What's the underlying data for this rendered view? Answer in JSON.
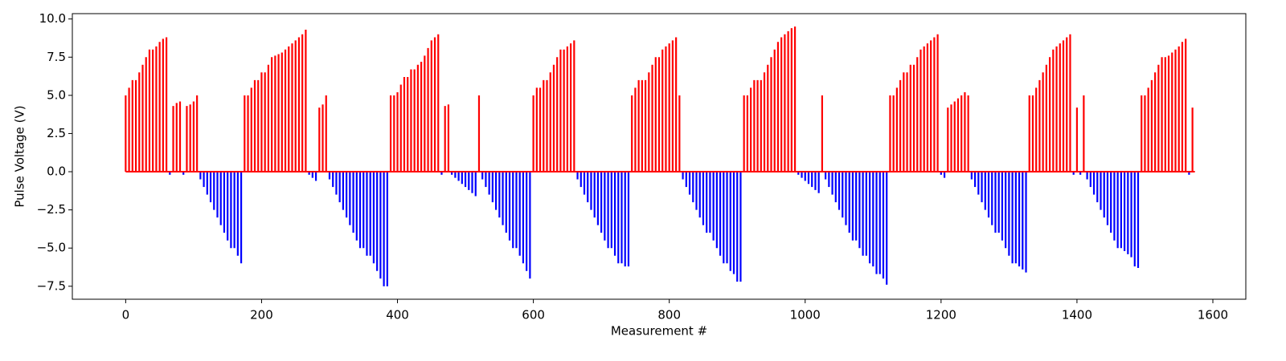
{
  "chart_data": {
    "type": "stem",
    "x_label": "Measurement #",
    "y_label": "Pulse Voltage (V)",
    "positive_color": "#ff0000",
    "negative_color": "#0000ff",
    "baseline_color": "#ff0000",
    "xlim": [
      -78.5,
      1648.5
    ],
    "xticks": [
      0,
      200,
      400,
      600,
      800,
      1000,
      1200,
      1400,
      1600
    ],
    "ylim": [
      -8.35,
      10.35
    ],
    "yticks": [
      {
        "value": -7.5,
        "label": "−7.5"
      },
      {
        "value": -5,
        "label": "−5.0"
      },
      {
        "value": -2.5,
        "label": "−2.5"
      },
      {
        "value": 0,
        "label": "0.0"
      },
      {
        "value": 2.5,
        "label": "2.5"
      },
      {
        "value": 5,
        "label": "5.0"
      },
      {
        "value": 7.5,
        "label": "7.5"
      },
      {
        "value": 10,
        "label": "10.0"
      }
    ],
    "x": [
      0,
      5,
      10,
      15,
      20,
      25,
      30,
      35,
      40,
      45,
      50,
      55,
      60,
      65,
      70,
      75,
      80,
      85,
      90,
      95,
      100,
      105,
      110,
      115,
      120,
      125,
      130,
      135,
      140,
      145,
      150,
      155,
      160,
      165,
      170,
      175,
      180,
      185,
      190,
      195,
      200,
      205,
      210,
      215,
      220,
      225,
      230,
      235,
      240,
      245,
      250,
      255,
      260,
      265,
      270,
      275,
      280,
      285,
      290,
      295,
      300,
      305,
      310,
      315,
      320,
      325,
      330,
      335,
      340,
      345,
      350,
      355,
      360,
      365,
      370,
      375,
      380,
      385,
      390,
      395,
      400,
      405,
      410,
      415,
      420,
      425,
      430,
      435,
      440,
      445,
      450,
      455,
      460,
      465,
      470,
      475,
      480,
      485,
      490,
      495,
      500,
      505,
      510,
      515,
      520,
      525,
      530,
      535,
      540,
      545,
      550,
      555,
      560,
      565,
      570,
      575,
      580,
      585,
      590,
      595,
      600,
      605,
      610,
      615,
      620,
      625,
      630,
      635,
      640,
      645,
      650,
      655,
      660,
      665,
      670,
      675,
      680,
      685,
      690,
      695,
      700,
      705,
      710,
      715,
      720,
      725,
      730,
      735,
      740,
      745,
      750,
      755,
      760,
      765,
      770,
      775,
      780,
      785,
      790,
      795,
      800,
      805,
      810,
      815,
      820,
      825,
      830,
      835,
      840,
      845,
      850,
      855,
      860,
      865,
      870,
      875,
      880,
      885,
      890,
      895,
      900,
      905,
      910,
      915,
      920,
      925,
      930,
      935,
      940,
      945,
      950,
      955,
      960,
      965,
      970,
      975,
      980,
      985,
      990,
      995,
      1000,
      1005,
      1010,
      1015,
      1020,
      1025,
      1030,
      1035,
      1040,
      1045,
      1050,
      1055,
      1060,
      1065,
      1070,
      1075,
      1080,
      1085,
      1090,
      1095,
      1100,
      1105,
      1110,
      1115,
      1120,
      1125,
      1130,
      1135,
      1140,
      1145,
      1150,
      1155,
      1160,
      1165,
      1170,
      1175,
      1180,
      1185,
      1190,
      1195,
      1200,
      1205,
      1210,
      1215,
      1220,
      1225,
      1230,
      1235,
      1240,
      1245,
      1250,
      1255,
      1260,
      1265,
      1270,
      1275,
      1280,
      1285,
      1290,
      1295,
      1300,
      1305,
      1310,
      1315,
      1320,
      1325,
      1330,
      1335,
      1340,
      1345,
      1350,
      1355,
      1360,
      1365,
      1370,
      1375,
      1380,
      1385,
      1390,
      1395,
      1400,
      1405,
      1410,
      1415,
      1420,
      1425,
      1430,
      1435,
      1440,
      1445,
      1450,
      1455,
      1460,
      1465,
      1470,
      1475,
      1480,
      1485,
      1490,
      1495,
      1500,
      1505,
      1510,
      1515,
      1520,
      1525,
      1530,
      1535,
      1540,
      1545,
      1550,
      1555,
      1560,
      1565,
      1570
    ],
    "values": [
      5.0,
      5.5,
      6.0,
      6.0,
      6.5,
      7.0,
      7.5,
      8.0,
      8.0,
      8.2,
      8.5,
      8.7,
      8.8,
      -0.2,
      4.3,
      4.5,
      4.6,
      -0.2,
      4.3,
      4.4,
      4.6,
      5.0,
      -0.5,
      -1.0,
      -1.5,
      -2.0,
      -2.5,
      -3.0,
      -3.5,
      -4.0,
      -4.5,
      -5.0,
      -5.0,
      -5.5,
      -6.0,
      5.0,
      5.0,
      5.5,
      6.0,
      6.0,
      6.5,
      6.5,
      7.0,
      7.5,
      7.6,
      7.7,
      7.8,
      8.0,
      8.2,
      8.4,
      8.6,
      8.8,
      9.0,
      9.3,
      -0.2,
      -0.4,
      -0.6,
      4.2,
      4.4,
      5.0,
      -0.5,
      -1.0,
      -1.5,
      -2.0,
      -2.5,
      -3.0,
      -3.5,
      -4.0,
      -4.5,
      -5.0,
      -5.0,
      -5.5,
      -5.5,
      -6.0,
      -6.5,
      -7.0,
      -7.5,
      -7.5,
      5.0,
      5.0,
      5.2,
      5.7,
      6.2,
      6.2,
      6.7,
      6.7,
      7.0,
      7.2,
      7.6,
      8.1,
      8.6,
      8.8,
      9.0,
      -0.2,
      4.3,
      4.4,
      -0.2,
      -0.4,
      -0.6,
      -0.8,
      -1.0,
      -1.2,
      -1.4,
      -1.6,
      5.0,
      -0.5,
      -1.0,
      -1.5,
      -2.0,
      -2.5,
      -3.0,
      -3.5,
      -4.0,
      -4.5,
      -5.0,
      -5.0,
      -5.5,
      -6.0,
      -6.5,
      -7.0,
      5.0,
      5.5,
      5.5,
      6.0,
      6.0,
      6.5,
      7.0,
      7.5,
      8.0,
      8.0,
      8.2,
      8.4,
      8.6,
      -0.5,
      -1.0,
      -1.5,
      -2.0,
      -2.5,
      -3.0,
      -3.5,
      -4.0,
      -4.5,
      -5.0,
      -5.0,
      -5.5,
      -6.0,
      -6.0,
      -6.2,
      -6.2,
      5.0,
      5.5,
      6.0,
      6.0,
      6.0,
      6.5,
      7.0,
      7.5,
      7.5,
      8.0,
      8.2,
      8.4,
      8.6,
      8.8,
      5.0,
      -0.5,
      -1.0,
      -1.5,
      -2.0,
      -2.5,
      -3.0,
      -3.5,
      -4.0,
      -4.0,
      -4.5,
      -5.0,
      -5.5,
      -6.0,
      -6.0,
      -6.5,
      -6.7,
      -7.2,
      -7.2,
      5.0,
      5.0,
      5.5,
      6.0,
      6.0,
      6.0,
      6.5,
      7.0,
      7.5,
      8.0,
      8.5,
      8.8,
      9.0,
      9.2,
      9.4,
      9.5,
      -0.2,
      -0.4,
      -0.6,
      -0.8,
      -1.0,
      -1.2,
      -1.4,
      5.0,
      -0.5,
      -1.0,
      -1.5,
      -2.0,
      -2.5,
      -3.0,
      -3.5,
      -4.0,
      -4.5,
      -4.5,
      -5.0,
      -5.5,
      -5.5,
      -6.0,
      -6.2,
      -6.7,
      -6.7,
      -7.0,
      -7.4,
      5.0,
      5.0,
      5.5,
      6.0,
      6.5,
      6.5,
      7.0,
      7.0,
      7.5,
      8.0,
      8.2,
      8.4,
      8.6,
      8.8,
      9.0,
      -0.2,
      -0.4,
      4.2,
      4.4,
      4.6,
      4.8,
      5.0,
      5.2,
      5.0,
      -0.5,
      -1.0,
      -1.5,
      -2.0,
      -2.5,
      -3.0,
      -3.5,
      -4.0,
      -4.0,
      -4.5,
      -5.0,
      -5.5,
      -6.0,
      -6.0,
      -6.2,
      -6.4,
      -6.6,
      5.0,
      5.0,
      5.5,
      6.0,
      6.5,
      7.0,
      7.5,
      8.0,
      8.2,
      8.4,
      8.6,
      8.8,
      9.0,
      -0.2,
      4.2,
      -0.2,
      5.0,
      -0.5,
      -1.0,
      -1.5,
      -2.0,
      -2.5,
      -3.0,
      -3.5,
      -4.0,
      -4.5,
      -5.0,
      -5.0,
      -5.2,
      -5.4,
      -5.6,
      -6.2,
      -6.3,
      5.0,
      5.0,
      5.5,
      6.0,
      6.5,
      7.0,
      7.5,
      7.5,
      7.6,
      7.8,
      8.0,
      8.2,
      8.5,
      8.7,
      -0.2,
      4.2
    ]
  }
}
